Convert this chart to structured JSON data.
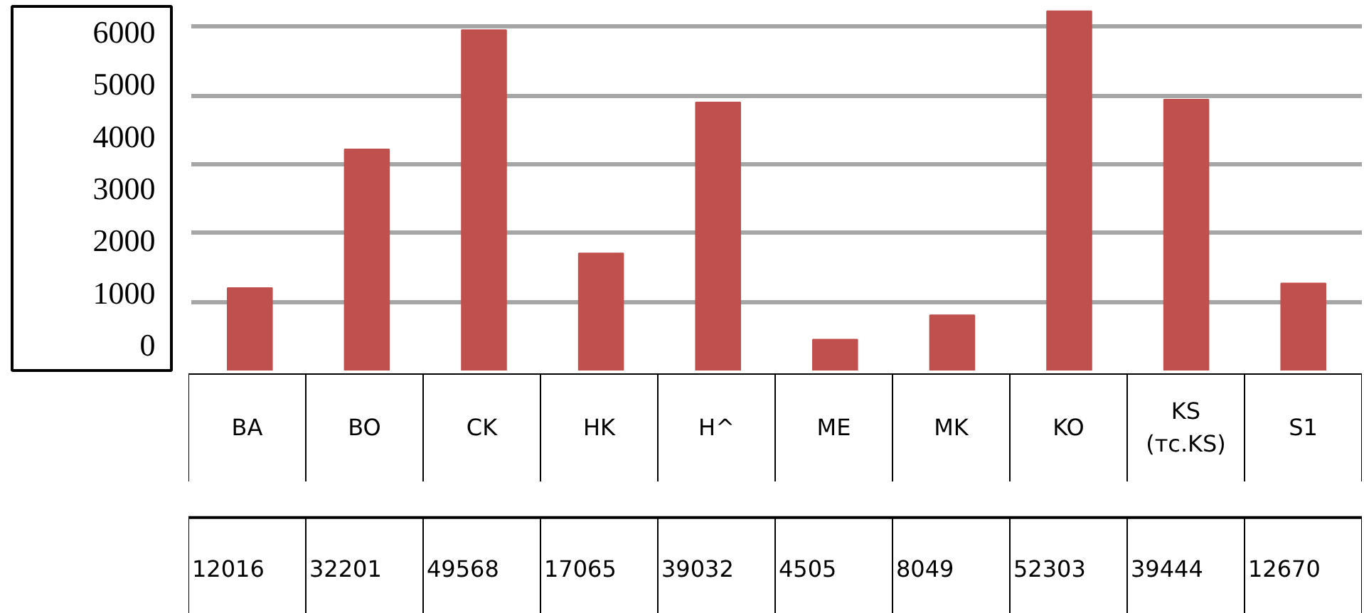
{
  "chart_data": {
    "type": "bar",
    "categories": [
      "BA",
      "BO",
      "CK",
      "HK",
      "H^",
      "ME",
      "MK",
      "KO",
      "KS\n(тс.KS)",
      "S1"
    ],
    "values": [
      12016,
      32201,
      49568,
      17065,
      39032,
      4505,
      8049,
      52303,
      39444,
      12670
    ],
    "color": "#c0504d",
    "data_labels": true,
    "ylim": [
      0,
      53000
    ],
    "yticks": [
      {
        "value": 10000,
        "label": null
      },
      {
        "value": 20000,
        "label": null
      },
      {
        "value": 30000,
        "label": null
      },
      {
        "value": 40000,
        "label": null
      },
      {
        "value": 50000,
        "label": null
      }
    ],
    "annotations": [
      "6000",
      "5000",
      "4000",
      "3000",
      "2000",
      "1000",
      "0"
    ],
    "grid": "y"
  }
}
